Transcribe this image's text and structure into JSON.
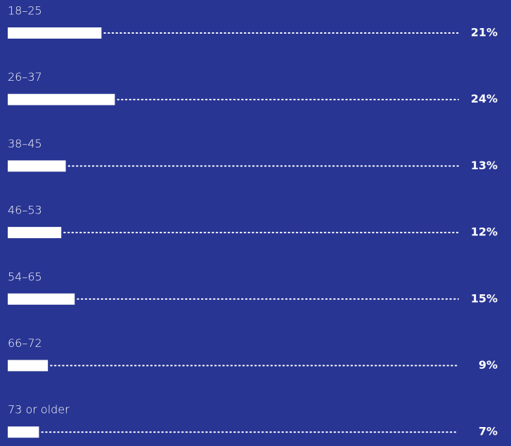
{
  "chart_data": {
    "type": "bar",
    "orientation": "horizontal",
    "categories": [
      "18–25",
      "26–37",
      "38–45",
      "46–53",
      "54–65",
      "66–72",
      "73 or older"
    ],
    "values": [
      21,
      24,
      13,
      12,
      15,
      9,
      7
    ],
    "value_labels": [
      "21%",
      "24%",
      "13%",
      "12%",
      "15%",
      "9%",
      "7%"
    ],
    "color": "#ffffff"
  }
}
